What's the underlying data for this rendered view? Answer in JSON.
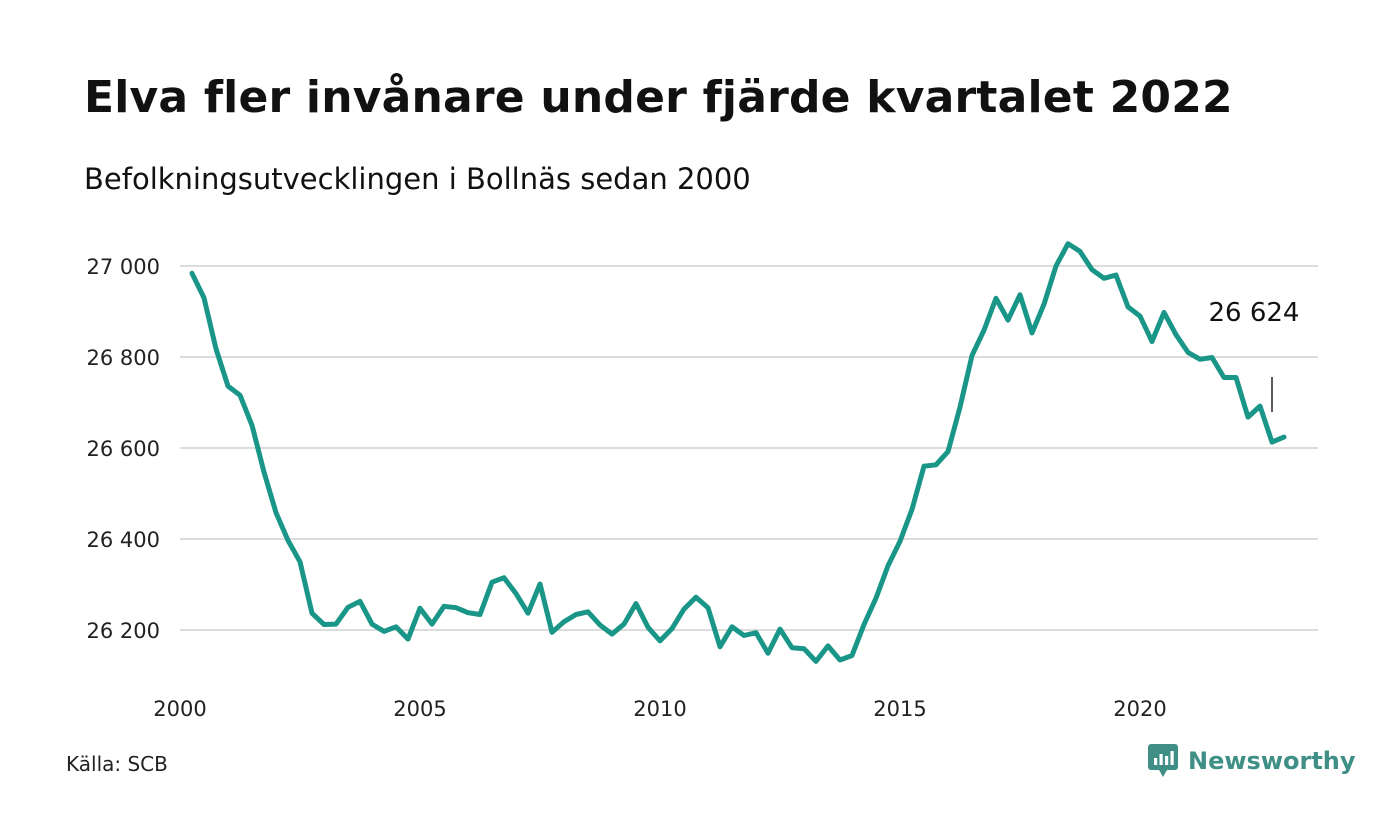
{
  "header": {
    "title": "Elva fler invånare under fjärde kvartalet 2022",
    "subtitle": "Befolkningsutvecklingen i Bollnäs sedan 2000"
  },
  "footer": {
    "source": "Källa: SCB",
    "brand": "Newsworthy"
  },
  "colors": {
    "line": "#1a9688",
    "brand": "#3f8f86"
  },
  "chart_data": {
    "type": "line",
    "title": "Elva fler invånare under fjärde kvartalet 2022",
    "subtitle": "Befolkningsutvecklingen i Bollnäs sedan 2000",
    "xlabel": "",
    "ylabel": "",
    "xlim": [
      2000,
      2023.25
    ],
    "ylim": [
      26100,
      27060
    ],
    "x_ticks": [
      2000,
      2005,
      2010,
      2015,
      2020
    ],
    "x_tick_labels": [
      "2000",
      "2005",
      "2010",
      "2015",
      "2020"
    ],
    "y_ticks": [
      26200,
      26400,
      26600,
      26800,
      27000
    ],
    "y_tick_labels": [
      "26 200",
      "26 400",
      "26 600",
      "26 800",
      "27 000"
    ],
    "grid": true,
    "legend": "none",
    "annotation": {
      "text": "26 624",
      "x": 2022.75,
      "y": 26624
    },
    "series": [
      {
        "color": "#1a9688",
        "x": [
          2000.25,
          2000.5,
          2000.75,
          2001.0,
          2001.25,
          2001.5,
          2001.75,
          2002.0,
          2002.25,
          2002.5,
          2002.75,
          2003.0,
          2003.25,
          2003.5,
          2003.75,
          2004.0,
          2004.25,
          2004.5,
          2004.75,
          2005.0,
          2005.25,
          2005.5,
          2005.75,
          2006.0,
          2006.25,
          2006.5,
          2006.75,
          2007.0,
          2007.25,
          2007.5,
          2007.75,
          2008.0,
          2008.25,
          2008.5,
          2008.75,
          2009.0,
          2009.25,
          2009.5,
          2009.75,
          2010.0,
          2010.25,
          2010.5,
          2010.75,
          2011.0,
          2011.25,
          2011.5,
          2011.75,
          2012.0,
          2012.25,
          2012.5,
          2012.75,
          2013.0,
          2013.25,
          2013.5,
          2013.75,
          2014.0,
          2014.25,
          2014.5,
          2014.75,
          2015.0,
          2015.25,
          2015.5,
          2015.75,
          2016.0,
          2016.25,
          2016.5,
          2016.75,
          2017.0,
          2017.25,
          2017.5,
          2017.75,
          2018.0,
          2018.25,
          2018.5,
          2018.75,
          2019.0,
          2019.25,
          2019.5,
          2019.75,
          2020.0,
          2020.25,
          2020.5,
          2020.75,
          2021.0,
          2021.25,
          2021.5,
          2021.75,
          2022.0,
          2022.25,
          2022.5,
          2022.75,
          2023.0
        ],
        "values": [
          26984,
          26930,
          26818,
          26736,
          26716,
          26650,
          26547,
          26458,
          26397,
          26350,
          26237,
          26212,
          26213,
          26250,
          26263,
          26213,
          26197,
          26207,
          26180,
          26248,
          26213,
          26252,
          26249,
          26238,
          26234,
          26305,
          26315,
          26280,
          26237,
          26301,
          26195,
          26218,
          26234,
          26240,
          26211,
          26191,
          26213,
          26258,
          26206,
          26176,
          26203,
          26246,
          26272,
          26249,
          26163,
          26207,
          26188,
          26194,
          26149,
          26202,
          26161,
          26159,
          26131,
          26165,
          26134,
          26144,
          26212,
          26270,
          26341,
          26395,
          26465,
          26560,
          26563,
          26592,
          26690,
          26803,
          26859,
          26929,
          26881,
          26937,
          26853,
          26916,
          27000,
          27049,
          27032,
          26992,
          26973,
          26980,
          26910,
          26890,
          26834,
          26898,
          26849,
          26810,
          26795,
          26799,
          26755,
          26755,
          26668,
          26692,
          26613,
          26624
        ]
      }
    ]
  }
}
